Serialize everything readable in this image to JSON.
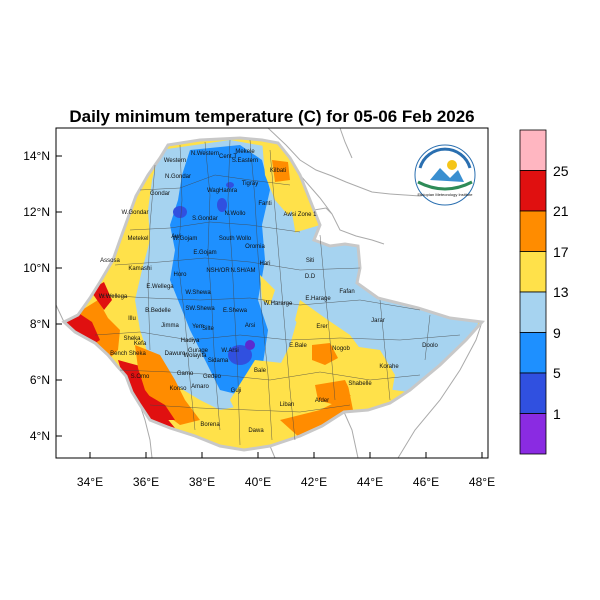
{
  "title": "Daily minimum temperature (C) for 05-06 Feb 2026",
  "colors": {
    "purple": "#8a2be2",
    "blue_dark": "#3050e0",
    "blue": "#1e90ff",
    "light_blue": "#a6d3f0",
    "yellow": "#ffe14a",
    "orange": "#ff8c00",
    "red": "#e01010",
    "pink": "#ffb6c1"
  },
  "axes": {
    "x_ticks": [
      "34°E",
      "36°E",
      "38°E",
      "40°E",
      "42°E",
      "44°E",
      "46°E",
      "48°E"
    ],
    "y_ticks": [
      "14°N",
      "12°N",
      "10°N",
      "8°N",
      "6°N",
      "4°N"
    ]
  },
  "colorbar": {
    "labels": [
      "25",
      "21",
      "17",
      "13",
      "9",
      "5",
      "1"
    ]
  },
  "logo": {
    "text": "Ethiopian Meteorology Institute"
  },
  "regions": [
    "N.Western",
    "Cent.T",
    "Mekele",
    "S.Eastern",
    "Western",
    "N.Gondar",
    "Kilbati",
    "Gondar",
    "WagHamra",
    "Tigray",
    "W.Gondar",
    "S.Gondar",
    "N.Wollo",
    "Fanti",
    "Awsi Zone 1",
    "Metekel",
    "Awi",
    "W.Gojam",
    "South Wollo",
    "Oromia",
    "Assosa",
    "E.Gojam",
    "Kamashi",
    "Horo",
    "NSH/OR",
    "N.SH/AM",
    "Hari",
    "Siti",
    "D.D",
    "W.Wellega",
    "E.Wellega",
    "W.Shewa",
    "W.Hararge",
    "E.Harage",
    "Fafan",
    "B.Bedelle",
    "SW.Shewa",
    "E.Shewa",
    "Jimma",
    "Yem",
    "Arsi",
    "Erer",
    "Jarar",
    "Illu",
    "Kefa",
    "Hadiya",
    "Silte",
    "Gurage",
    "W.Arsi",
    "E.Bale",
    "Nogob",
    "Doolo",
    "Sheka",
    "Bench Sheka",
    "Dawuro",
    "Wolayita",
    "Sidama",
    "Korahe",
    "Gamo",
    "Gedeo",
    "Bale",
    "Shabelle",
    "S.Omo",
    "Konso",
    "Amaro",
    "Guji",
    "Liban",
    "Afder",
    "Borena",
    "Dawa"
  ]
}
